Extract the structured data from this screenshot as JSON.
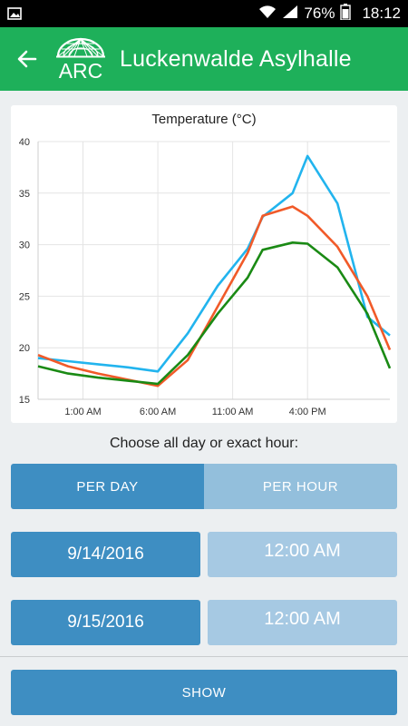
{
  "status_bar": {
    "battery": "76%",
    "time": "18:12",
    "icons": [
      "gallery-icon",
      "wifi-icon",
      "signal-icon",
      "battery-icon"
    ]
  },
  "app_bar": {
    "logo_text": "ARC",
    "title": "Luckenwalde Asylhalle",
    "color": "#1eb05a"
  },
  "chart_data": {
    "type": "line",
    "title": "Temperature (°C)",
    "xlabel": "",
    "ylabel": "",
    "ylim": [
      15,
      40
    ],
    "yticks": [
      "40",
      "35",
      "30",
      "25",
      "20",
      "15"
    ],
    "xticks": [
      "1:00 AM",
      "6:00 AM",
      "11:00 AM",
      "4:00 PM"
    ],
    "xtick_hours": [
      1,
      6,
      11,
      16
    ],
    "xlim_hours": [
      -2,
      21.5
    ],
    "series": [
      {
        "color": "#22b4ee",
        "x": [
          -2,
          0,
          2,
          4,
          6,
          8,
          10,
          12,
          13,
          15,
          16,
          18,
          20,
          21.5
        ],
        "y": [
          19,
          18.7,
          18.4,
          18.1,
          17.7,
          21.4,
          26,
          29.6,
          32.7,
          35,
          38.6,
          34,
          23,
          21.2
        ]
      },
      {
        "color": "#f15a29",
        "x": [
          -2,
          0,
          2,
          4,
          6,
          8,
          10,
          12,
          13,
          15,
          16,
          18,
          20,
          21.5
        ],
        "y": [
          19.3,
          18.2,
          17.5,
          16.9,
          16.3,
          18.8,
          24,
          29.2,
          32.8,
          33.7,
          32.8,
          29.8,
          25,
          19.8
        ]
      },
      {
        "color": "#1a8a14",
        "x": [
          -2,
          0,
          2,
          4,
          6,
          8,
          10,
          12,
          13,
          15,
          16,
          18,
          20,
          21.5
        ],
        "y": [
          18.2,
          17.5,
          17.1,
          16.8,
          16.5,
          19.3,
          23.3,
          26.8,
          29.5,
          30.2,
          30.1,
          27.8,
          23.3,
          18
        ]
      }
    ]
  },
  "controls": {
    "choose_label": "Choose all day or exact hour:",
    "per_day": "PER DAY",
    "per_hour": "PER HOUR",
    "start_date": "9/14/2016",
    "start_time": "12:00 AM",
    "end_date": "9/15/2016",
    "end_time": "12:00 AM",
    "show": "SHOW"
  }
}
